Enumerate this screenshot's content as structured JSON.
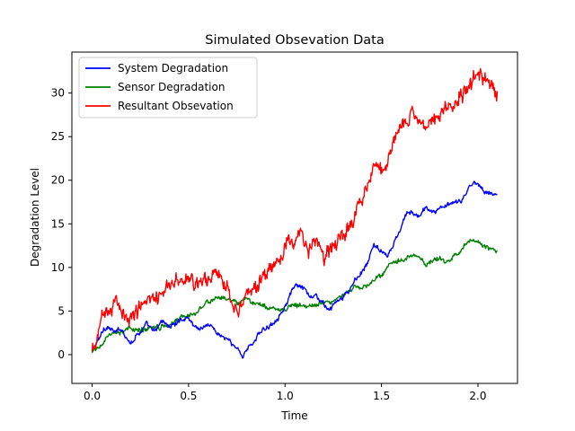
{
  "chart_data": {
    "type": "line",
    "title": "Simulated Obsevation Data",
    "xlabel": "Time",
    "ylabel": "Degradation Level",
    "xlim": [
      -0.105,
      2.205
    ],
    "ylim": [
      -3.3,
      34.7
    ],
    "xticks": [
      0.0,
      0.5,
      1.0,
      1.5,
      2.0
    ],
    "xtick_labels": [
      "0.0",
      "0.5",
      "1.0",
      "1.5",
      "2.0"
    ],
    "yticks": [
      0,
      5,
      10,
      15,
      20,
      25,
      30
    ],
    "ytick_labels": [
      "0",
      "5",
      "10",
      "15",
      "20",
      "25",
      "30"
    ],
    "grid": false,
    "legend": "top-left",
    "series": [
      {
        "name": "System Degradation",
        "color": "#0000ff",
        "noise": 0.3,
        "x": [
          0.0,
          0.03,
          0.06,
          0.08,
          0.12,
          0.15,
          0.18,
          0.2,
          0.23,
          0.26,
          0.28,
          0.3,
          0.33,
          0.36,
          0.4,
          0.43,
          0.46,
          0.5,
          0.53,
          0.56,
          0.6,
          0.63,
          0.66,
          0.7,
          0.73,
          0.76,
          0.78,
          0.8,
          0.83,
          0.86,
          0.9,
          0.93,
          0.96,
          1.0,
          1.03,
          1.06,
          1.1,
          1.13,
          1.16,
          1.2,
          1.23,
          1.26,
          1.3,
          1.33,
          1.36,
          1.4,
          1.43,
          1.46,
          1.5,
          1.53,
          1.56,
          1.6,
          1.63,
          1.66,
          1.7,
          1.73,
          1.76,
          1.8,
          1.83,
          1.86,
          1.9,
          1.93,
          1.96,
          2.0,
          2.03,
          2.06,
          2.1
        ],
        "y": [
          0.5,
          1.5,
          3.0,
          3.2,
          2.5,
          3.0,
          2.0,
          1.2,
          2.3,
          2.8,
          3.5,
          3.0,
          2.6,
          4.0,
          3.2,
          3.5,
          4.0,
          4.3,
          3.2,
          3.0,
          3.5,
          3.0,
          2.2,
          1.8,
          1.0,
          0.6,
          -0.2,
          0.6,
          1.2,
          2.3,
          3.0,
          3.5,
          4.2,
          5.5,
          7.0,
          8.0,
          7.5,
          6.5,
          6.8,
          5.8,
          5.0,
          6.0,
          6.5,
          7.2,
          8.5,
          9.5,
          10.5,
          12.7,
          11.8,
          11.2,
          12.5,
          14.5,
          16.2,
          16.3,
          15.8,
          17.0,
          16.3,
          16.8,
          17.0,
          17.2,
          17.5,
          18.0,
          19.5,
          19.8,
          18.8,
          18.5,
          18.3
        ]
      },
      {
        "name": "Sensor Degradation",
        "color": "#008000",
        "noise": 0.3,
        "x": [
          0.0,
          0.03,
          0.06,
          0.1,
          0.13,
          0.16,
          0.2,
          0.23,
          0.26,
          0.3,
          0.33,
          0.36,
          0.4,
          0.43,
          0.46,
          0.5,
          0.53,
          0.56,
          0.6,
          0.63,
          0.66,
          0.7,
          0.73,
          0.76,
          0.8,
          0.83,
          0.86,
          0.9,
          0.93,
          0.96,
          1.0,
          1.03,
          1.06,
          1.1,
          1.13,
          1.16,
          1.2,
          1.23,
          1.26,
          1.3,
          1.33,
          1.36,
          1.4,
          1.43,
          1.46,
          1.5,
          1.53,
          1.56,
          1.6,
          1.63,
          1.66,
          1.7,
          1.73,
          1.76,
          1.8,
          1.83,
          1.86,
          1.9,
          1.93,
          1.96,
          2.0,
          2.03,
          2.06,
          2.1
        ],
        "y": [
          0.2,
          0.8,
          1.5,
          2.3,
          2.5,
          2.7,
          3.0,
          2.8,
          2.9,
          3.1,
          3.3,
          3.2,
          3.5,
          4.0,
          4.3,
          4.5,
          4.7,
          5.5,
          6.0,
          6.3,
          6.5,
          6.4,
          6.0,
          5.8,
          6.3,
          6.0,
          5.7,
          5.5,
          5.3,
          5.3,
          5.2,
          5.6,
          5.8,
          5.5,
          5.7,
          5.6,
          6.0,
          6.0,
          6.5,
          6.8,
          7.3,
          7.8,
          7.5,
          8.0,
          8.5,
          9.0,
          10.0,
          10.5,
          10.8,
          11.0,
          11.5,
          11.0,
          10.5,
          10.8,
          11.0,
          10.5,
          11.0,
          11.5,
          12.5,
          13.3,
          12.8,
          12.5,
          12.2,
          11.8
        ]
      },
      {
        "name": "Resultant Obsevation",
        "color": "#ff0000",
        "noise": 1.0,
        "x": [
          0.0,
          0.02,
          0.04,
          0.06,
          0.08,
          0.1,
          0.12,
          0.15,
          0.18,
          0.2,
          0.23,
          0.26,
          0.3,
          0.33,
          0.36,
          0.4,
          0.43,
          0.46,
          0.5,
          0.53,
          0.56,
          0.6,
          0.63,
          0.66,
          0.7,
          0.73,
          0.76,
          0.8,
          0.83,
          0.86,
          0.9,
          0.93,
          0.96,
          1.0,
          1.03,
          1.06,
          1.1,
          1.13,
          1.16,
          1.2,
          1.23,
          1.26,
          1.3,
          1.33,
          1.36,
          1.4,
          1.43,
          1.46,
          1.5,
          1.53,
          1.56,
          1.6,
          1.63,
          1.66,
          1.7,
          1.73,
          1.76,
          1.8,
          1.83,
          1.86,
          1.9,
          1.93,
          1.96,
          2.0,
          2.03,
          2.06,
          2.1
        ],
        "y": [
          0.0,
          1.5,
          3.0,
          5.0,
          5.0,
          5.5,
          5.8,
          5.3,
          4.8,
          4.0,
          5.3,
          5.8,
          6.8,
          7.0,
          6.8,
          7.8,
          8.0,
          8.5,
          9.0,
          8.0,
          8.5,
          9.0,
          9.3,
          9.5,
          7.5,
          6.0,
          5.5,
          6.5,
          7.5,
          8.0,
          9.0,
          10.0,
          10.5,
          12.0,
          13.0,
          13.5,
          13.2,
          12.0,
          13.0,
          11.0,
          12.0,
          13.0,
          13.5,
          14.5,
          16.0,
          17.5,
          20.0,
          22.0,
          21.0,
          21.5,
          24.0,
          27.0,
          26.5,
          28.0,
          27.0,
          26.0,
          27.5,
          27.0,
          28.0,
          29.0,
          29.5,
          30.0,
          31.0,
          32.0,
          31.5,
          31.0,
          30.0
        ]
      }
    ]
  }
}
